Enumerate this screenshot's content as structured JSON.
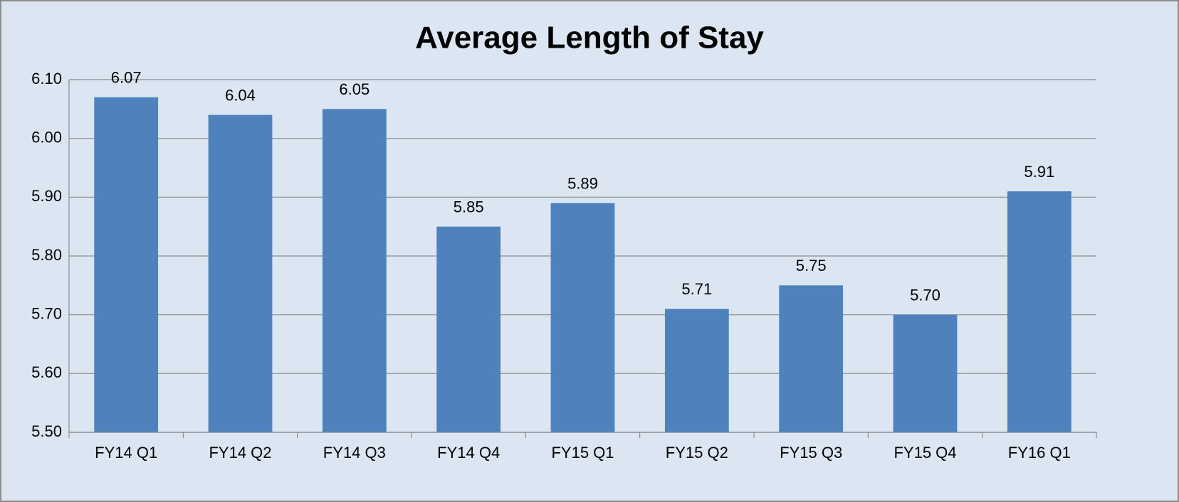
{
  "chart_data": {
    "type": "bar",
    "title": "Average Length of Stay",
    "categories": [
      "FY14 Q1",
      "FY14 Q2",
      "FY14 Q3",
      "FY14 Q4",
      "FY15 Q1",
      "FY15 Q2",
      "FY15 Q3",
      "FY15 Q4",
      "FY16 Q1"
    ],
    "values": [
      6.07,
      6.04,
      6.05,
      5.85,
      5.89,
      5.71,
      5.75,
      5.7,
      5.91
    ],
    "value_labels": [
      "6.07",
      "6.04",
      "6.05",
      "5.85",
      "5.89",
      "5.71",
      "5.75",
      "5.70",
      "5.91"
    ],
    "color": "#4f81bd",
    "ylim": [
      5.5,
      6.1
    ],
    "yticks": [
      {
        "value": 5.5,
        "label": "5.50"
      },
      {
        "value": 5.6,
        "label": "5.60"
      },
      {
        "value": 5.7,
        "label": "5.70"
      },
      {
        "value": 5.8,
        "label": "5.80"
      },
      {
        "value": 5.9,
        "label": "5.90"
      },
      {
        "value": 6.0,
        "label": "6.00"
      },
      {
        "value": 6.1,
        "label": "6.10"
      }
    ],
    "grid": true
  }
}
